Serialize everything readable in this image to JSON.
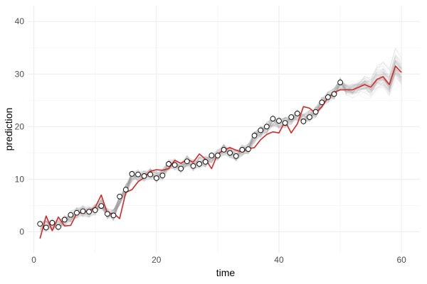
{
  "chart_data": {
    "type": "line",
    "xlabel": "time",
    "ylabel": "prediction",
    "xlim": [
      -1,
      63
    ],
    "ylim": [
      -4,
      43
    ],
    "x_ticks": [
      0,
      20,
      40,
      60
    ],
    "y_ticks": [
      0,
      10,
      20,
      30,
      40
    ],
    "grid": true,
    "legend": "none",
    "colors": {
      "red_line": "#d62728",
      "ensemble": "#8c8c8c",
      "points_fill": "#ffffff",
      "points_stroke": "#000000",
      "grid_major": "#ebebeb",
      "grid_minor": "#f5f5f5"
    },
    "series": [
      {
        "x": [
          1,
          2,
          3,
          4,
          5,
          6,
          7,
          8,
          9,
          10,
          11,
          12,
          13,
          14,
          15,
          16,
          17,
          18,
          19,
          20,
          21,
          22,
          23,
          24,
          25,
          26,
          27,
          28,
          29,
          30,
          31,
          32,
          33,
          34,
          35,
          36,
          37,
          38,
          39,
          40,
          41,
          42,
          43,
          44,
          45,
          46,
          47,
          48,
          49,
          50,
          51,
          52,
          53,
          54,
          55,
          56,
          57,
          58,
          59,
          60
        ],
        "values": [
          -1.3,
          3.0,
          0.2,
          2.8,
          1.1,
          1.2,
          3.5,
          3.7,
          4.0,
          4.6,
          7.0,
          3.5,
          3.5,
          2.5,
          7.5,
          8.0,
          9.5,
          10.3,
          11.5,
          11.8,
          11.7,
          12.0,
          13.6,
          13.0,
          13.8,
          13.2,
          14.8,
          13.8,
          12.0,
          14.8,
          15.5,
          16.0,
          15.5,
          15.2,
          15.8,
          16.0,
          17.5,
          18.5,
          19.0,
          18.8,
          21.0,
          18.8,
          20.5,
          23.8,
          23.5,
          22.5,
          23.8,
          25.5,
          26.5,
          27.0,
          27.0,
          27.0,
          27.5,
          28.0,
          27.5,
          29.0,
          29.5,
          28.0,
          31.5,
          30.3
        ]
      },
      {
        "x": [
          1,
          2,
          3,
          4,
          5,
          6,
          7,
          8,
          9,
          10,
          11,
          12,
          13,
          14,
          15,
          16,
          17,
          18,
          19,
          20,
          21,
          22,
          23,
          24,
          25,
          26,
          27,
          28,
          29,
          30,
          31,
          32,
          33,
          34,
          35,
          36,
          37,
          38,
          39,
          40,
          41,
          42,
          43,
          44,
          45,
          46,
          47,
          48,
          49,
          50
        ],
        "values": [
          1.5,
          0.8,
          1.7,
          0.9,
          2.3,
          3.2,
          3.6,
          3.9,
          3.8,
          4.1,
          4.9,
          3.4,
          3.1,
          6.7,
          8.0,
          11.0,
          10.9,
          10.6,
          10.9,
          10.2,
          10.7,
          12.9,
          12.7,
          12.0,
          13.4,
          12.5,
          12.9,
          13.3,
          14.5,
          14.5,
          15.6,
          15.0,
          14.4,
          15.6,
          15.7,
          18.3,
          19.3,
          20.0,
          21.5,
          21.1,
          20.7,
          21.8,
          22.5,
          21.0,
          21.8,
          22.8,
          24.6,
          25.6,
          26.2,
          28.4
        ]
      }
    ]
  }
}
